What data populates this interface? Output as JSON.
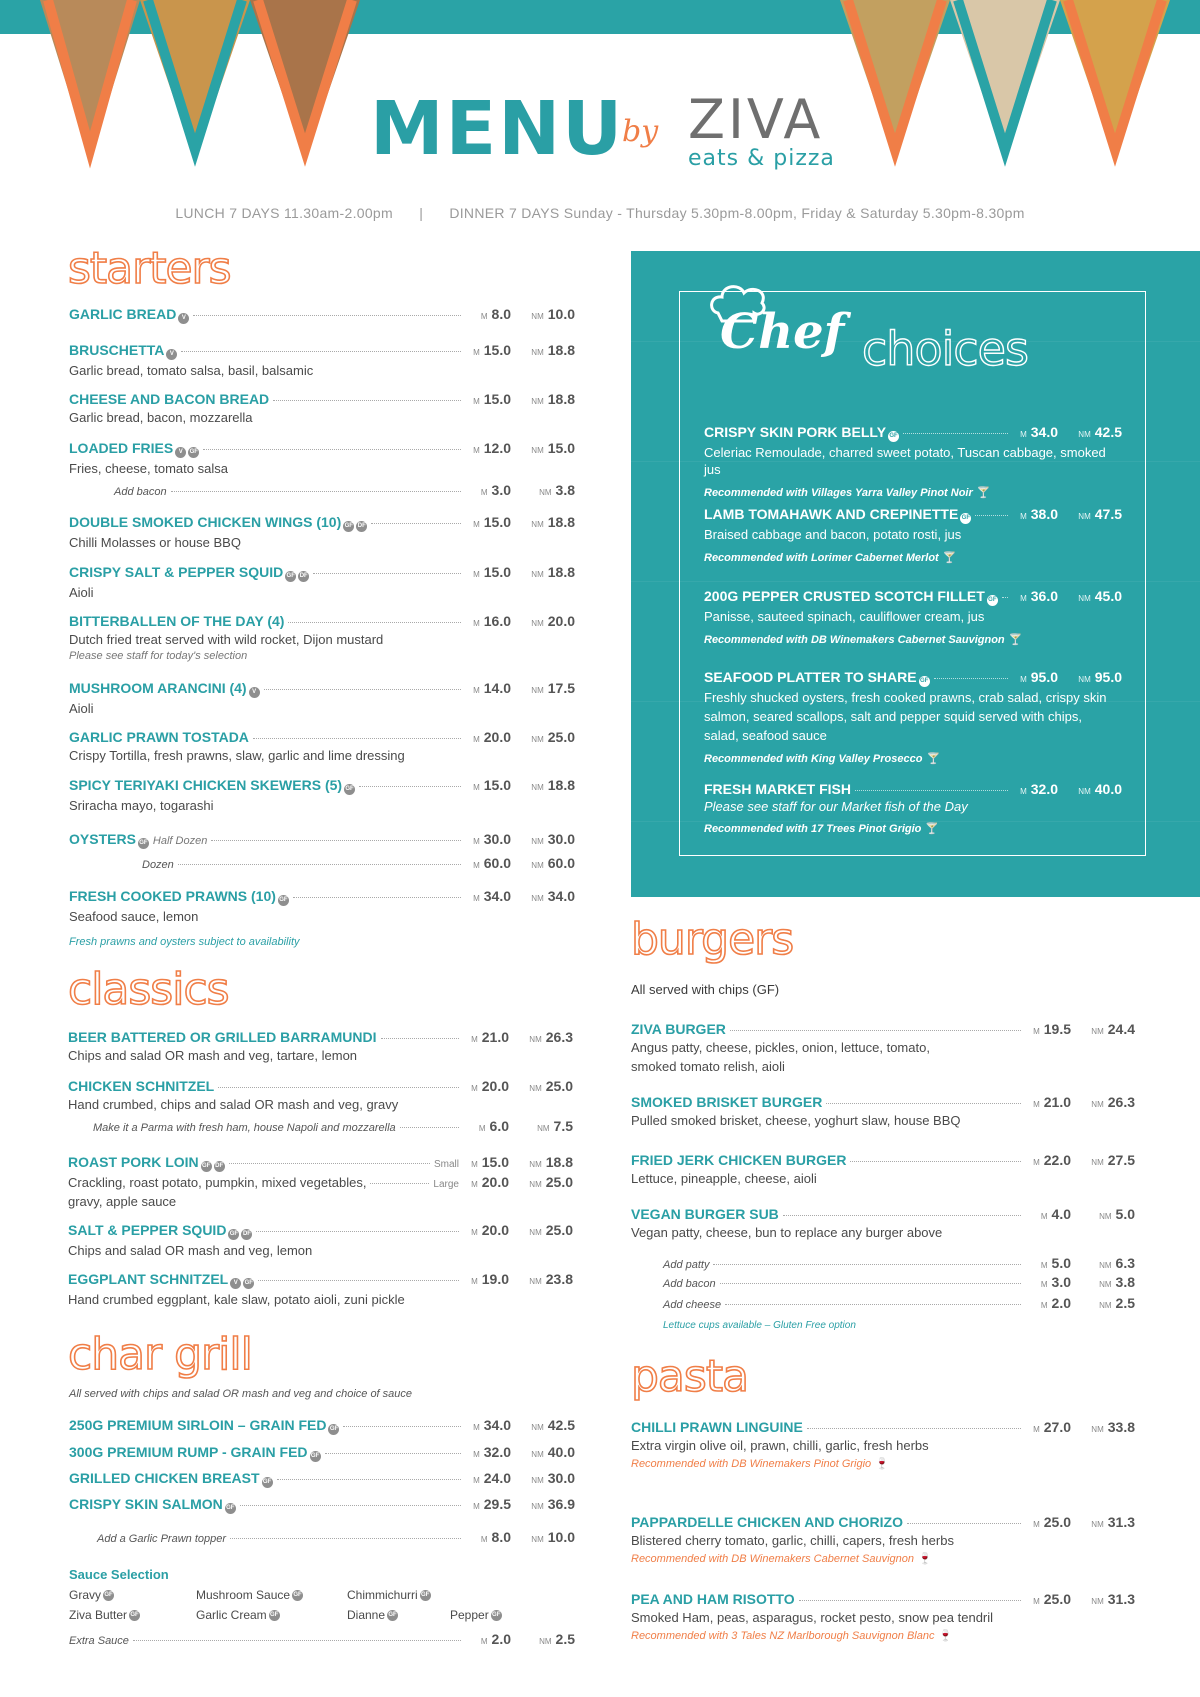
{
  "header": {
    "menu_word": "MENU",
    "by_word": "by",
    "brand_name": "ZIVA",
    "brand_sub": "eats & pizza",
    "colors": {
      "teal": "#2aa3a6",
      "orange": "#f07e47",
      "grey": "#6f6f6f"
    }
  },
  "hours": {
    "lunch": "LUNCH 7 DAYS 11.30am-2.00pm",
    "separator": "|",
    "dinner": "DINNER 7 DAYS Sunday - Thursday 5.30pm-8.00pm, Friday & Saturday 5.30pm-8.30pm"
  },
  "labels": {
    "m": "M",
    "nm": "NM",
    "small": "Small",
    "large": "Large",
    "glass_icon": "🍸",
    "wine_icon": "🍷"
  },
  "starters": {
    "title": "starters",
    "items": [
      {
        "name": "GARLIC BREAD",
        "badges": [
          "V"
        ],
        "m": "8.0",
        "nm": "10.0",
        "desc": ""
      },
      {
        "name": "BRUSCHETTA",
        "badges": [
          "V"
        ],
        "m": "15.0",
        "nm": "18.8",
        "desc": "Garlic bread, tomato salsa, basil, balsamic"
      },
      {
        "name": "CHEESE AND BACON BREAD",
        "badges": [],
        "m": "15.0",
        "nm": "18.8",
        "desc": "Garlic bread, bacon, mozzarella"
      },
      {
        "name": "LOADED FRIES",
        "badges": [
          "V",
          "GF"
        ],
        "m": "12.0",
        "nm": "15.0",
        "desc": "Fries, cheese, tomato salsa"
      },
      {
        "name": "Add bacon",
        "badges": [],
        "m": "3.0",
        "nm": "3.8",
        "desc": ""
      },
      {
        "name": "DOUBLE SMOKED CHICKEN WINGS (10)",
        "badges": [
          "GF",
          "DF"
        ],
        "m": "15.0",
        "nm": "18.8",
        "desc": "Chilli Molasses or house BBQ"
      },
      {
        "name": "CRISPY SALT & PEPPER SQUID",
        "badges": [
          "GF",
          "DF"
        ],
        "m": "15.0",
        "nm": "18.8",
        "desc": "Aioli"
      },
      {
        "name": "BITTERBALLEN OF THE DAY (4)",
        "badges": [],
        "m": "16.0",
        "nm": "20.0",
        "desc": "Dutch fried treat served with wild rocket, Dijon mustard",
        "note": "Please see staff for today's selection"
      },
      {
        "name": "MUSHROOM ARANCINI (4)",
        "badges": [
          "V"
        ],
        "m": "14.0",
        "nm": "17.5",
        "desc": "Aioli"
      },
      {
        "name": "GARLIC PRAWN TOSTADA",
        "badges": [],
        "m": "20.0",
        "nm": "25.0",
        "desc": "Crispy Tortilla, fresh prawns, slaw, garlic and lime dressing"
      },
      {
        "name": "SPICY TERIYAKI CHICKEN SKEWERS (5)",
        "badges": [
          "GF"
        ],
        "m": "15.0",
        "nm": "18.8",
        "desc": "Sriracha mayo, togarashi"
      },
      {
        "name": "OYSTERS",
        "badges": [
          "GF"
        ],
        "qualifier": "Half Dozen",
        "m": "30.0",
        "nm": "30.0",
        "desc": ""
      },
      {
        "name": "Dozen",
        "badges": [],
        "m": "60.0",
        "nm": "60.0",
        "desc": ""
      },
      {
        "name": "FRESH COOKED PRAWNS (10)",
        "badges": [
          "GF"
        ],
        "m": "34.0",
        "nm": "34.0",
        "desc": "Seafood sauce, lemon"
      }
    ],
    "footnote": "Fresh prawns and oysters subject to availability"
  },
  "classics": {
    "title": "classics",
    "items": [
      {
        "name": "BEER BATTERED OR GRILLED BARRAMUNDI",
        "m": "21.0",
        "nm": "26.3",
        "desc": "Chips and salad OR mash and veg, tartare, lemon"
      },
      {
        "name": "CHICKEN SCHNITZEL",
        "m": "20.0",
        "nm": "25.0",
        "desc": "Hand crumbed, chips and salad OR mash and veg, gravy"
      },
      {
        "name": "Make it a Parma with fresh ham, house Napoli and mozzarella",
        "m": "6.0",
        "nm": "7.5",
        "desc": ""
      },
      {
        "name": "ROAST PORK LOIN",
        "badges": [
          "GF",
          "DF"
        ],
        "m_small": "15.0",
        "nm_small": "18.8",
        "m_large": "20.0",
        "nm_large": "25.0",
        "desc": "Crackling, roast potato, pumpkin, mixed vegetables,",
        "desc2": "gravy, apple sauce"
      },
      {
        "name": "SALT & PEPPER SQUID",
        "badges": [
          "GF",
          "DF"
        ],
        "m": "20.0",
        "nm": "25.0",
        "desc": "Chips and salad OR mash and veg, lemon"
      },
      {
        "name": "EGGPLANT SCHNITZEL",
        "badges": [
          "V",
          "GF"
        ],
        "m": "19.0",
        "nm": "23.8",
        "desc": "Hand crumbed eggplant, kale slaw, potato aioli, zuni pickle"
      }
    ]
  },
  "char_grill": {
    "title": "char grill",
    "intro": "All served with chips and salad OR mash and veg and choice of sauce",
    "items": [
      {
        "name": "250G PREMIUM SIRLOIN – GRAIN FED",
        "badges": [
          "GF"
        ],
        "m": "34.0",
        "nm": "42.5"
      },
      {
        "name": "300G PREMIUM RUMP - GRAIN FED",
        "badges": [
          "GF"
        ],
        "m": "32.0",
        "nm": "40.0"
      },
      {
        "name": "GRILLED CHICKEN BREAST",
        "badges": [
          "GF"
        ],
        "m": "24.0",
        "nm": "30.0"
      },
      {
        "name": "CRISPY SKIN SALMON",
        "badges": [
          "GF"
        ],
        "m": "29.5",
        "nm": "36.9"
      },
      {
        "name": "Add a Garlic Prawn topper",
        "badges": [],
        "m": "8.0",
        "nm": "10.0"
      }
    ],
    "sauce_title": "Sauce Selection",
    "sauces": [
      "Gravy",
      "Mushroom Sauce",
      "Chimmichurri",
      "Ziva Butter",
      "Garlic Cream",
      "Dianne",
      "Pepper"
    ],
    "extra_sauce": {
      "name": "Extra Sauce",
      "m": "2.0",
      "nm": "2.5"
    }
  },
  "chef_choices": {
    "title_script": "Chef",
    "title_outline": "choices",
    "items": [
      {
        "name": "CRISPY SKIN PORK BELLY",
        "badges": [
          "GF"
        ],
        "m": "34.0",
        "nm": "42.5",
        "desc": "Celeriac Remoulade, charred sweet potato, Tuscan cabbage, smoked jus",
        "rec": "Recommended with Villages Yarra Valley Pinot Noir"
      },
      {
        "name": "LAMB TOMAHAWK AND CREPINETTE",
        "badges": [
          "GF"
        ],
        "m": "38.0",
        "nm": "47.5",
        "desc": "Braised cabbage and bacon, potato rosti, jus",
        "rec": "Recommended with Lorimer Cabernet Merlot"
      },
      {
        "name": "200G PEPPER CRUSTED SCOTCH FILLET",
        "badges": [
          "GF"
        ],
        "m": "36.0",
        "nm": "45.0",
        "desc": "Panisse, sauteed spinach, cauliflower cream, jus",
        "rec": "Recommended with DB Winemakers Cabernet Sauvignon"
      },
      {
        "name": "SEAFOOD PLATTER TO SHARE",
        "badges": [
          "GF"
        ],
        "m": "95.0",
        "nm": "95.0",
        "desc": "Freshly shucked oysters, fresh cooked prawns, crab salad, crispy skin",
        "desc2": "salmon, seared scallops, salt and pepper squid served with chips,",
        "desc3": "salad, seafood sauce",
        "rec": "Recommended with King Valley Prosecco"
      },
      {
        "name": "FRESH MARKET FISH",
        "badges": [],
        "m": "32.0",
        "nm": "40.0",
        "desc": "Please see staff for our Market fish of the Day",
        "rec": "Recommended with 17 Trees Pinot Grigio"
      }
    ]
  },
  "burgers": {
    "title": "burgers",
    "intro": "All served with chips (GF)",
    "items": [
      {
        "name": "ZIVA BURGER",
        "m": "19.5",
        "nm": "24.4",
        "desc": "Angus patty, cheese, pickles, onion, lettuce, tomato,",
        "desc2": "smoked tomato relish, aioli"
      },
      {
        "name": "SMOKED BRISKET BURGER",
        "m": "21.0",
        "nm": "26.3",
        "desc": "Pulled smoked brisket, cheese, yoghurt slaw, house BBQ"
      },
      {
        "name": "FRIED JERK CHICKEN BURGER",
        "m": "22.0",
        "nm": "27.5",
        "desc": "Lettuce, pineapple, cheese, aioli"
      },
      {
        "name": "VEGAN BURGER SUB",
        "m": "4.0",
        "nm": "5.0",
        "desc": "Vegan patty, cheese, bun to replace any burger above"
      },
      {
        "name": "Add patty",
        "m": "5.0",
        "nm": "6.3"
      },
      {
        "name": "Add bacon",
        "m": "3.0",
        "nm": "3.8"
      },
      {
        "name": "Add cheese",
        "m": "2.0",
        "nm": "2.5"
      }
    ],
    "footnote": "Lettuce cups available – Gluten Free option"
  },
  "pasta": {
    "title": "pasta",
    "items": [
      {
        "name": "CHILLI PRAWN LINGUINE",
        "m": "27.0",
        "nm": "33.8",
        "desc": "Extra virgin olive oil, prawn, chilli, garlic, fresh herbs",
        "rec": "Recommended with DB Winemakers Pinot Grigio"
      },
      {
        "name": "PAPPARDELLE CHICKEN AND CHORIZO",
        "m": "25.0",
        "nm": "31.3",
        "desc": "Blistered cherry tomato, garlic, chilli, capers, fresh herbs",
        "rec": "Recommended with DB Winemakers Cabernet Sauvignon"
      },
      {
        "name": "PEA AND HAM RISOTTO",
        "m": "25.0",
        "nm": "31.3",
        "desc": "Smoked Ham, peas, asparagus, rocket pesto, snow pea tendril",
        "rec": "Recommended with 3 Tales NZ Marlborough Sauvignon Blanc"
      }
    ]
  }
}
